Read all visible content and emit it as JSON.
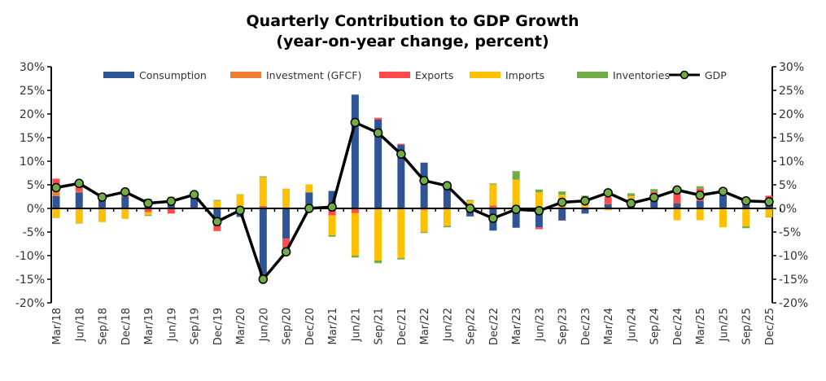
{
  "chart_data": {
    "type": "bar",
    "subtype": "stacked bar with line",
    "title": "Quarterly Contribution to GDP Growth",
    "subtitle": "(year-on-year change, percent)",
    "ylim": [
      -20,
      30
    ],
    "yticks": [
      -20,
      -15,
      -10,
      -5,
      0,
      5,
      10,
      15,
      20,
      25,
      30
    ],
    "ytick_suffix": "%",
    "secondary_axis": true,
    "grid": false,
    "legend_position": "top",
    "categories": [
      "Mar/18",
      "Jun/18",
      "Sep/18",
      "Dec/18",
      "Mar/19",
      "Jun/19",
      "Sep/19",
      "Dec/19",
      "Mar/20",
      "Jun/20",
      "Sep/20",
      "Dec/20",
      "Mar/21",
      "Jun/21",
      "Sep/21",
      "Dec/21",
      "Mar/22",
      "Jun/22",
      "Sep/22",
      "Dec/22",
      "Mar/23",
      "Jun/23",
      "Sep/23",
      "Dec/23",
      "Mar/24",
      "Jun/24",
      "Sep/24",
      "Dec/24",
      "Mar/25",
      "Jun/25",
      "Sep/25",
      "Dec/25"
    ],
    "series": [
      {
        "name": "Consumption",
        "color": "#2F5597",
        "type": "bar",
        "values": [
          2.6,
          3.4,
          2.2,
          2.5,
          2.0,
          1.7,
          2.5,
          -3.7,
          -1.8,
          -14.5,
          -6.4,
          3.4,
          3.7,
          24.1,
          18.8,
          13.5,
          9.7,
          5.5,
          -1.7,
          -4.7,
          -4.1,
          -4.0,
          -2.5,
          -1.1,
          0.9,
          0.6,
          1.6,
          1.1,
          1.6,
          2.8,
          1.0,
          1.3
        ]
      },
      {
        "name": "Investment (GFCF)",
        "color": "#ED7D31",
        "type": "bar",
        "values": [
          1.0,
          0.3,
          0,
          0,
          0,
          0,
          0,
          0,
          0,
          0,
          0,
          0,
          0,
          0,
          0,
          0,
          0,
          0,
          0,
          0,
          0,
          0,
          0,
          0,
          0,
          0,
          0,
          0,
          0,
          0,
          0,
          0
        ]
      },
      {
        "name": "Exports",
        "color": "#FF4B4B",
        "type": "bar",
        "values": [
          2.7,
          1.7,
          0,
          0.4,
          -0.8,
          -1.1,
          0,
          -1.1,
          0,
          0.5,
          -2.0,
          0,
          -1.5,
          -1.0,
          0.4,
          0.2,
          -0.3,
          0,
          0,
          0.6,
          0.7,
          -0.4,
          -0.1,
          0,
          1.5,
          0,
          1.9,
          2.1,
          2.6,
          0,
          0,
          1.4
        ]
      },
      {
        "name": "Imports",
        "color": "#FFC000",
        "type": "bar",
        "values": [
          -1.9,
          -3.1,
          -2.9,
          -2.2,
          -0.6,
          0.7,
          0,
          1.6,
          2.9,
          6.1,
          4.2,
          1.7,
          -4.2,
          -9.0,
          -11.0,
          -10.5,
          -4.7,
          -3.7,
          1.6,
          4.5,
          5.4,
          3.4,
          2.9,
          1.6,
          -0.4,
          2.0,
          0,
          -2.5,
          -2.5,
          -4.0,
          -3.8,
          -1.8
        ]
      },
      {
        "name": "Inventories",
        "color": "#70AD47",
        "type": "bar",
        "values": [
          -0.1,
          -0.1,
          0,
          0,
          -0.2,
          0.1,
          0,
          0.2,
          0.1,
          0.2,
          0,
          0,
          -0.3,
          -0.4,
          -0.6,
          -0.3,
          -0.2,
          -0.3,
          0.2,
          0.2,
          1.8,
          0.6,
          0.7,
          1.1,
          0,
          0.6,
          0.6,
          0,
          0.5,
          0,
          -0.4,
          -0.1
        ]
      },
      {
        "name": "GDP",
        "color": "#000000",
        "marker_color": "#70AD47",
        "type": "line",
        "values": [
          4.4,
          5.3,
          2.4,
          3.5,
          1.1,
          1.5,
          2.9,
          -2.8,
          -0.4,
          -15.0,
          -9.2,
          0,
          0.3,
          18.2,
          16.0,
          11.5,
          5.9,
          4.8,
          0,
          -2.1,
          -0.2,
          -0.5,
          1.3,
          1.6,
          3.3,
          1.1,
          2.3,
          3.9,
          2.8,
          3.6,
          1.6,
          1.4
        ]
      }
    ]
  }
}
